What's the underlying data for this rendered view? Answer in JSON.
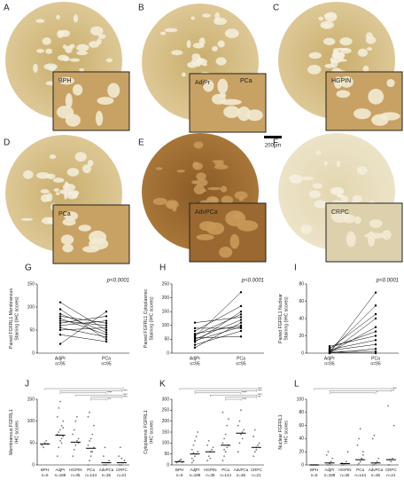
{
  "images": [
    {
      "panel": "A",
      "inset_label": "BPH"
    },
    {
      "panel": "B",
      "inset_label": "AdjPr",
      "region_label": "PCa"
    },
    {
      "panel": "C",
      "inset_label": "HGPIN"
    },
    {
      "panel": "D",
      "inset_label": "PCa"
    },
    {
      "panel": "E",
      "inset_label": "AdvPCa"
    },
    {
      "panel": "F",
      "inset_label": "CRPC"
    }
  ],
  "scale_bar": "200µm",
  "chart_data": [
    {
      "type": "paired",
      "panel": "G",
      "ylabel": "Paired FGFRL1 Membranous Staining (IHC scores)",
      "annotation": "p<0.0001",
      "ylim": [
        0,
        150
      ],
      "yticks": [
        0,
        50,
        100,
        150
      ],
      "color": "#000000",
      "series": [
        {
          "name": "AdjPr",
          "n": "n=95",
          "values": [
            70,
            85,
            60,
            95,
            50,
            75,
            65,
            40,
            110,
            80,
            55,
            20
          ]
        },
        {
          "name": "PCa",
          "n": "n=95",
          "values": [
            60,
            45,
            70,
            30,
            55,
            40,
            80,
            25,
            50,
            65,
            35,
            90
          ]
        }
      ]
    },
    {
      "type": "paired",
      "panel": "H",
      "ylabel": "Paired FGFRL1 Cytoplasmic Staining (IHC scores)",
      "annotation": "p<0.0001",
      "ylim": [
        0,
        250
      ],
      "yticks": [
        0,
        50,
        100,
        150,
        200,
        250
      ],
      "color": "#000000",
      "series": [
        {
          "name": "AdjPr",
          "n": "n=95",
          "values": [
            50,
            70,
            40,
            90,
            60,
            30,
            110,
            80,
            55,
            20,
            65,
            45
          ]
        },
        {
          "name": "PCa",
          "n": "n=95",
          "values": [
            120,
            100,
            150,
            90,
            220,
            80,
            130,
            170,
            60,
            110,
            140,
            95
          ]
        }
      ]
    },
    {
      "type": "paired",
      "panel": "I",
      "ylabel": "Paired FGFRL1 Nuclear Staining (IHC scores)",
      "annotation": "p<0.0001",
      "ylim": [
        0,
        80
      ],
      "yticks": [
        0,
        20,
        40,
        60,
        80
      ],
      "color": "#000000",
      "series": [
        {
          "name": "AdjPr",
          "n": "n=95",
          "values": [
            0,
            2,
            5,
            1,
            8,
            3,
            0,
            4,
            6,
            2,
            1,
            0
          ]
        },
        {
          "name": "PCa",
          "n": "n=95",
          "values": [
            70,
            55,
            45,
            30,
            20,
            10,
            5,
            15,
            25,
            2,
            0,
            40
          ]
        }
      ]
    },
    {
      "type": "strip",
      "panel": "J",
      "ylabel": "Membranous FGFRL1 IHC scores",
      "ylim": [
        0,
        150
      ],
      "yticks": [
        0,
        50,
        100,
        150
      ],
      "color": "#777777",
      "significance": [
        "*",
        "****",
        "****",
        "****",
        "****",
        "***"
      ],
      "groups": [
        {
          "name": "BPH",
          "n": "n=5",
          "mean": 48,
          "values": [
            45,
            40,
            50,
            55,
            48
          ]
        },
        {
          "name": "AdjPr",
          "n": "n=189",
          "mean": 68,
          "values": [
            20,
            40,
            55,
            60,
            65,
            70,
            75,
            80,
            90,
            100,
            110,
            130,
            145,
            50,
            85
          ]
        },
        {
          "name": "HGPIN",
          "n": "n=35",
          "mean": 52,
          "values": [
            20,
            35,
            45,
            55,
            60,
            70,
            80,
            100,
            110,
            50
          ]
        },
        {
          "name": "PCa",
          "n": "n=144",
          "mean": 38,
          "values": [
            0,
            10,
            20,
            30,
            40,
            45,
            55,
            60,
            70,
            90,
            110,
            120,
            30
          ]
        },
        {
          "name": "AdvPCa",
          "n": "n=36",
          "mean": 5,
          "values": [
            0,
            0,
            0,
            5,
            10,
            20,
            40,
            0
          ]
        },
        {
          "name": "CRPC",
          "n": "n=21",
          "mean": 5,
          "values": [
            0,
            0,
            0,
            5,
            10,
            20,
            40,
            15
          ]
        }
      ]
    },
    {
      "type": "strip",
      "panel": "K",
      "ylabel": "Cytoplasmic FGFRL1 IHC scores",
      "ylim": [
        0,
        300
      ],
      "yticks": [
        0,
        50,
        100,
        150,
        200,
        250,
        300
      ],
      "color": "#777777",
      "significance": [
        "****",
        "****",
        "****",
        "****",
        "***",
        "****"
      ],
      "groups": [
        {
          "name": "BPH",
          "n": "n=5",
          "mean": 15,
          "values": [
            10,
            15,
            20,
            25,
            12
          ]
        },
        {
          "name": "AdjPr",
          "n": "n=189",
          "mean": 50,
          "values": [
            10,
            20,
            40,
            50,
            60,
            70,
            90,
            110,
            130,
            150,
            30,
            55
          ]
        },
        {
          "name": "HGPIN",
          "n": "n=35",
          "mean": 60,
          "values": [
            20,
            40,
            60,
            70,
            80,
            90,
            110,
            30
          ]
        },
        {
          "name": "PCa",
          "n": "n=144",
          "mean": 90,
          "values": [
            20,
            40,
            60,
            80,
            90,
            100,
            120,
            140,
            180,
            210,
            240,
            70
          ]
        },
        {
          "name": "AdvPCa",
          "n": "n=36",
          "mean": 145,
          "values": [
            60,
            100,
            140,
            150,
            160,
            180,
            200,
            250,
            120
          ]
        },
        {
          "name": "CRPC",
          "n": "n=21",
          "mean": 80,
          "values": [
            40,
            60,
            80,
            90,
            100,
            130,
            160,
            70
          ]
        }
      ]
    },
    {
      "type": "strip",
      "panel": "L",
      "ylabel": "Nuclear FGFRL1 IHC scores",
      "ylim": [
        0,
        100
      ],
      "yticks": [
        0,
        20,
        40,
        60,
        80,
        100
      ],
      "color": "#777777",
      "significance": [
        "****",
        "**",
        "*"
      ],
      "groups": [
        {
          "name": "BPH",
          "n": "n=5",
          "mean": 0,
          "values": [
            0,
            0,
            0,
            0,
            0
          ]
        },
        {
          "name": "AdjPr",
          "n": "n=189",
          "mean": 3,
          "values": [
            0,
            0,
            2,
            5,
            10,
            15,
            20,
            3,
            0
          ]
        },
        {
          "name": "HGPIN",
          "n": "n=35",
          "mean": 2,
          "values": [
            0,
            0,
            2,
            5,
            20,
            3
          ]
        },
        {
          "name": "PCa",
          "n": "n=144",
          "mean": 8,
          "values": [
            0,
            2,
            5,
            10,
            20,
            30,
            40,
            55,
            8,
            15
          ]
        },
        {
          "name": "AdvPCa",
          "n": "n=36",
          "mean": 3,
          "values": [
            0,
            0,
            2,
            5,
            10,
            40,
            45
          ]
        },
        {
          "name": "CRPC",
          "n": "n=21",
          "mean": 8,
          "values": [
            0,
            0,
            5,
            10,
            60,
            90,
            8
          ]
        }
      ]
    }
  ]
}
